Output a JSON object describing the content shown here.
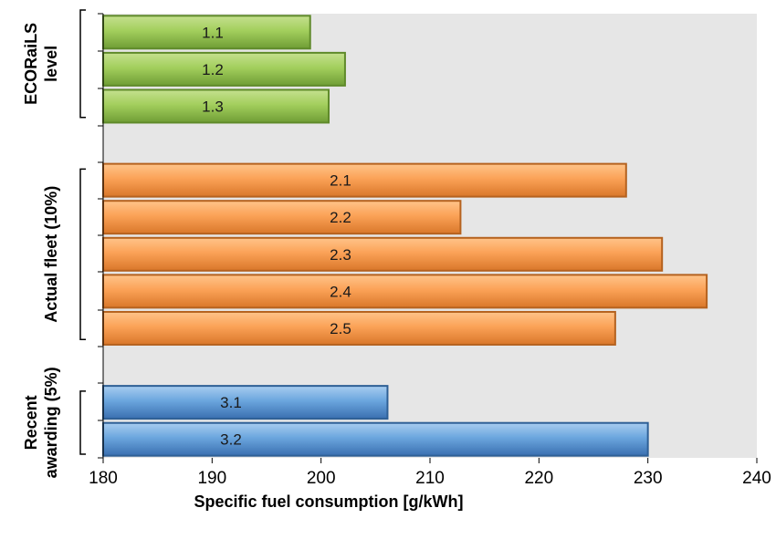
{
  "chart_data": {
    "type": "bar",
    "orientation": "horizontal",
    "title": "",
    "xlabel": "Specific fuel consumption [g/kWh]",
    "ylabel": "",
    "xlim": [
      180,
      240
    ],
    "xticks": [
      "180",
      "190",
      "200",
      "210",
      "220",
      "230",
      "240"
    ],
    "grid": false,
    "legend": "none",
    "groups": [
      {
        "name": "ECORaiLS level",
        "label_lines": [
          "ECORaiLS",
          "level"
        ],
        "color": "#8fc24a",
        "edge": "#5f8a2a",
        "bars": [
          {
            "label": "1.1",
            "value": 199
          },
          {
            "label": "1.2",
            "value": 202.2
          },
          {
            "label": "1.3",
            "value": 200.7
          }
        ]
      },
      {
        "name": "Actual fleet (10%)",
        "label_lines": [
          "Actual fleet (10%)"
        ],
        "color": "#f79b45",
        "edge": "#b5621f",
        "bars": [
          {
            "label": "2.1",
            "value": 228
          },
          {
            "label": "2.2",
            "value": 212.8
          },
          {
            "label": "2.3",
            "value": 231.3
          },
          {
            "label": "2.4",
            "value": 235.4
          },
          {
            "label": "2.5",
            "value": 227
          }
        ]
      },
      {
        "name": "Recent awarding (5%)",
        "label_lines": [
          "Recent",
          "awarding (5%)"
        ],
        "color": "#5b9bd5",
        "edge": "#2e5f95",
        "bars": [
          {
            "label": "3.1",
            "value": 206.1
          },
          {
            "label": "3.2",
            "value": 230
          }
        ]
      }
    ],
    "plot_background": "#e6e6e6"
  }
}
